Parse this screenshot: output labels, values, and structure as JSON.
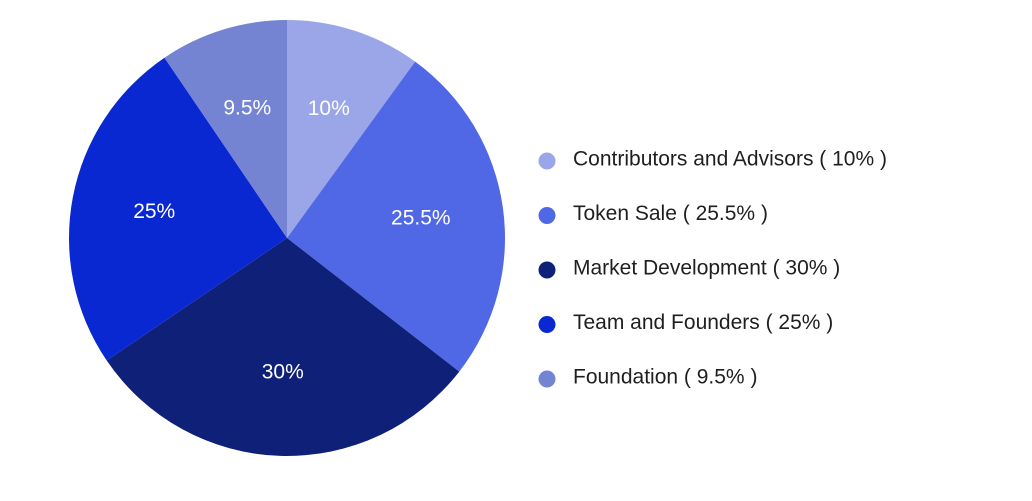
{
  "chart_data": {
    "type": "pie",
    "legend_position": "right",
    "slices": [
      {
        "label": "Contributors and Advisors ( 10% )",
        "value": 10,
        "value_label": "10%",
        "color": "#9ba6e8"
      },
      {
        "label": "Token Sale ( 25.5% )",
        "value": 25.5,
        "value_label": "25.5%",
        "color": "#5068e6"
      },
      {
        "label": "Market Development ( 30% )",
        "value": 30,
        "value_label": "30%",
        "color": "#0e2078"
      },
      {
        "label": "Team and Founders ( 25% )",
        "value": 25,
        "value_label": "25%",
        "color": "#0a28d2"
      },
      {
        "label": "Foundation ( 9.5% )",
        "value": 9.5,
        "value_label": "9.5%",
        "color": "#7484d3"
      }
    ]
  }
}
